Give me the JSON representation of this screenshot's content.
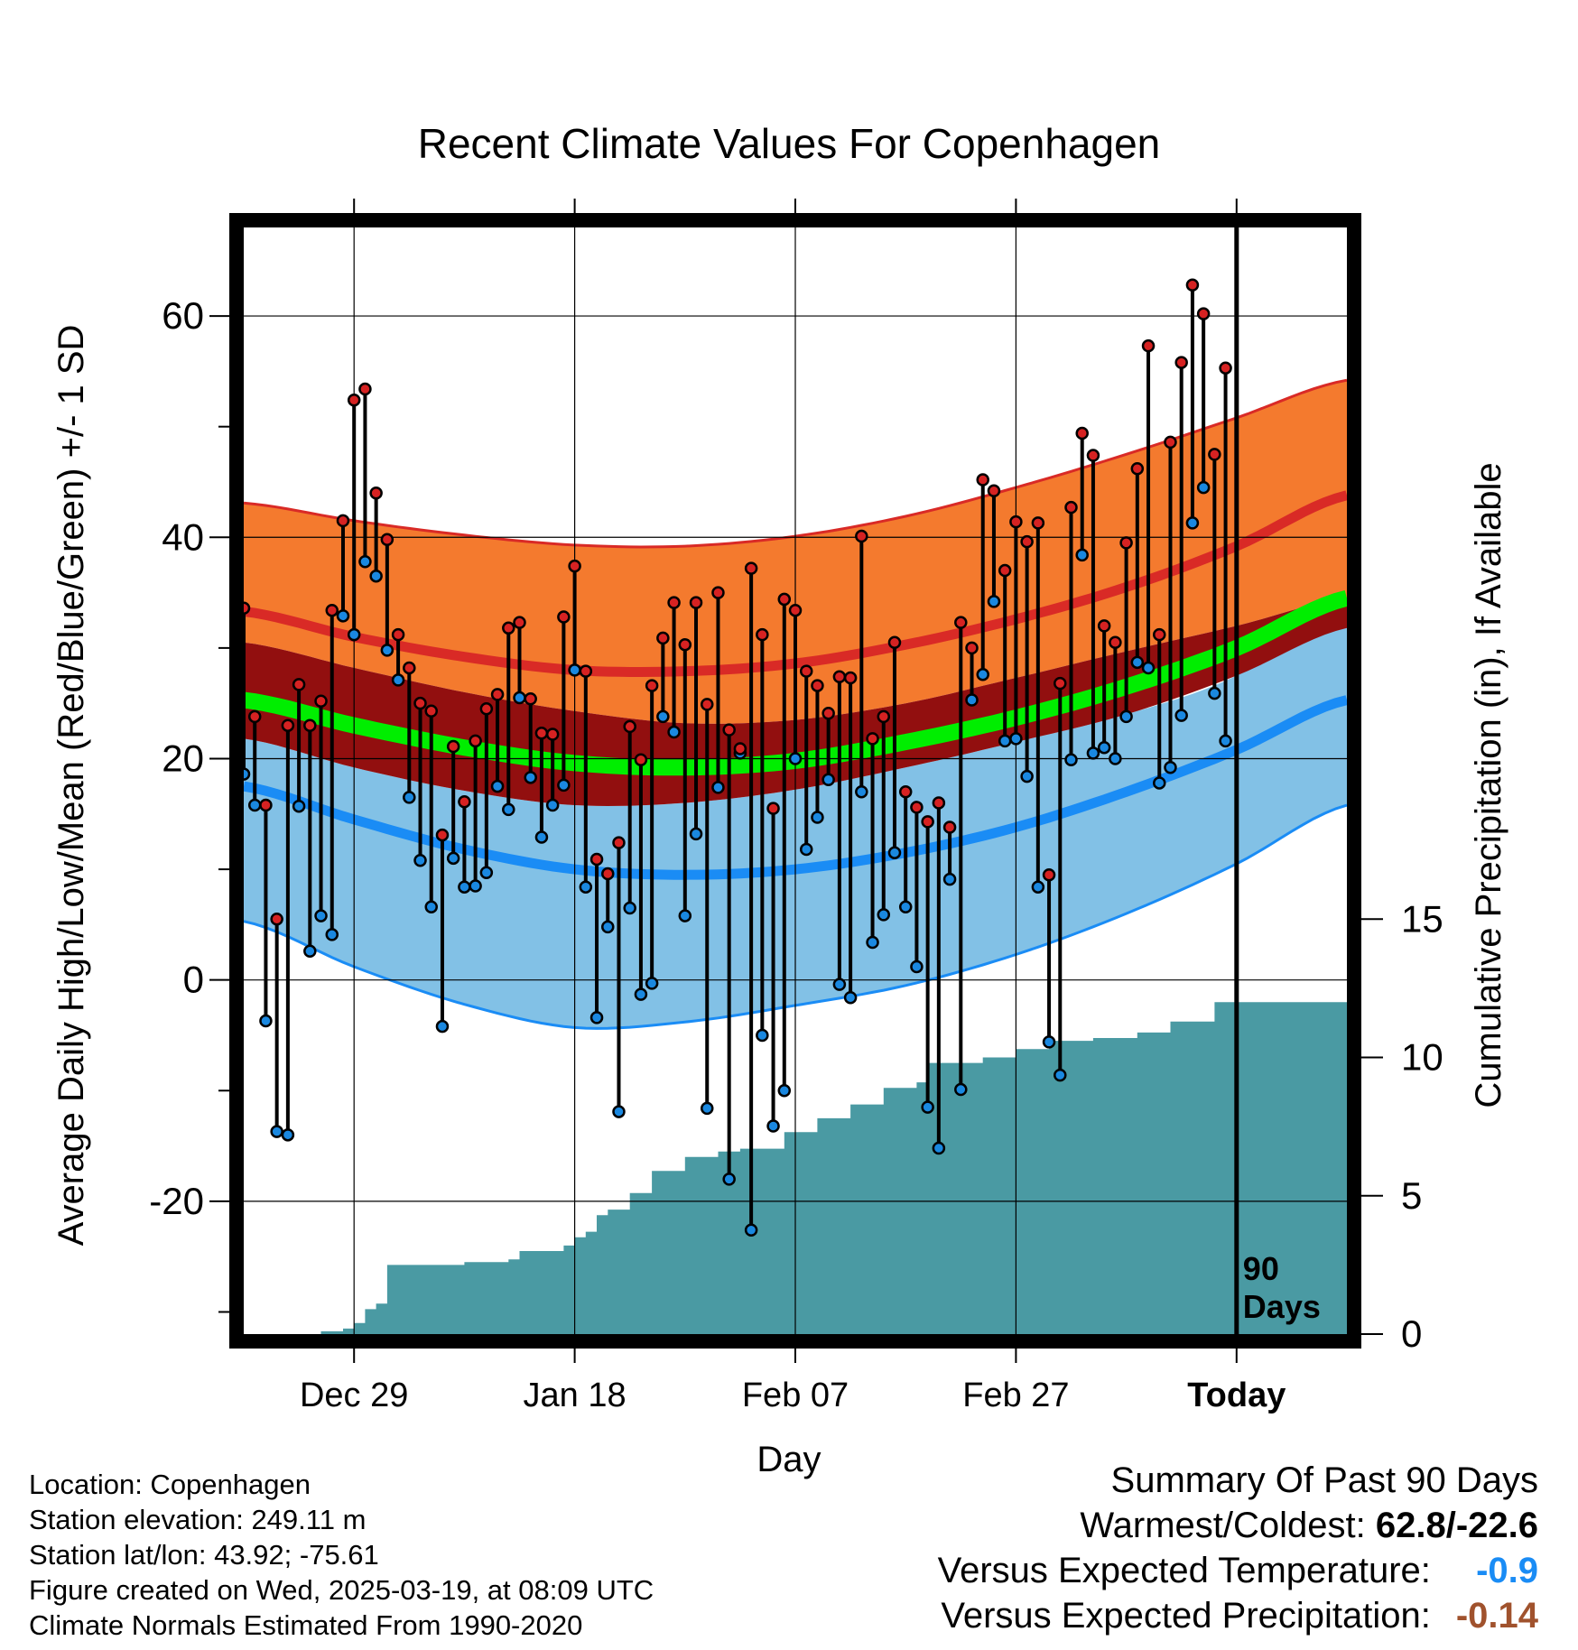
{
  "chart_data": {
    "type": "line",
    "title": "Recent Climate Values For Copenhagen",
    "xlabel": "Day",
    "ylabel": "Average Daily High/Low/Mean (Red/Blue/Green) +/- 1 SD",
    "y2label": "Cumulative Precipitation (in), If Available",
    "ylim": [
      -32,
      68
    ],
    "y2lim": [
      0,
      40
    ],
    "xlim": [
      -10,
      90
    ],
    "grid": true,
    "x_tick_labels": [
      "Dec 29",
      "Jan 18",
      "Feb 07",
      "Feb 27",
      "Today"
    ],
    "x_ticks": [
      0,
      20,
      40,
      60,
      80
    ],
    "y_ticks": [
      -20,
      0,
      20,
      40,
      60
    ],
    "y2_ticks": [
      0,
      5,
      10,
      15
    ],
    "today_marker_label": "90\nDays",
    "normal_curves": {
      "x": [
        -10,
        0,
        10,
        20,
        30,
        40,
        50,
        60,
        70,
        80,
        90
      ],
      "high_upper_sd": [
        43.1,
        41.5,
        40.2,
        39.3,
        39.2,
        40.1,
        41.9,
        44.5,
        47.5,
        50.8,
        54.2
      ],
      "high_mean": [
        33.3,
        31.0,
        29.2,
        28.0,
        27.9,
        28.6,
        30.3,
        32.6,
        35.5,
        39.2,
        43.8
      ],
      "high_lower_sd": [
        30.5,
        28.2,
        26.0,
        24.3,
        23.2,
        23.5,
        25.0,
        27.3,
        29.7,
        32.0,
        34.5
      ],
      "mean_line": [
        25.3,
        23.0,
        21.0,
        19.6,
        19.2,
        19.8,
        21.5,
        23.7,
        26.5,
        30.0,
        34.5
      ],
      "mean_lower_sd": [
        21.8,
        19.2,
        17.1,
        15.8,
        16.0,
        17.2,
        19.2,
        21.5,
        24.0,
        27.5,
        31.8
      ],
      "low_upper_sd": [
        21.8,
        19.2,
        17.1,
        15.8,
        16.0,
        17.2,
        19.2,
        21.5,
        24.0,
        27.5,
        33.8
      ],
      "low_mean": [
        17.5,
        14.5,
        11.8,
        10.0,
        9.5,
        10.0,
        11.5,
        13.8,
        17.0,
        20.8,
        25.3
      ],
      "low_lower_sd": [
        5.3,
        1.2,
        -2.2,
        -4.3,
        -3.8,
        -2.3,
        -0.5,
        2.3,
        6.0,
        10.5,
        15.8
      ]
    },
    "series": [
      {
        "name": "High",
        "x": [
          -10,
          -9,
          -8,
          -7,
          -6,
          -5,
          -4,
          -3,
          -2,
          -1,
          0,
          1,
          2,
          3,
          4,
          5,
          6,
          7,
          8,
          9,
          10,
          11,
          12,
          13,
          14,
          15,
          16,
          17,
          18,
          19,
          20,
          21,
          22,
          23,
          24,
          25,
          26,
          27,
          28,
          29,
          30,
          31,
          32,
          33,
          34,
          35,
          36,
          37,
          38,
          39,
          40,
          41,
          42,
          43,
          44,
          45,
          46,
          47,
          48,
          49,
          50,
          51,
          52,
          53,
          54,
          55,
          56,
          57,
          58,
          59,
          60,
          61,
          62,
          63,
          64,
          65,
          66,
          67,
          68,
          69,
          70,
          71,
          72,
          73,
          74,
          75,
          76,
          77,
          78,
          79
        ],
        "values": [
          33.6,
          23.8,
          15.8,
          5.5,
          23.0,
          26.7,
          23.0,
          25.2,
          33.4,
          41.5,
          52.4,
          53.4,
          44.0,
          39.8,
          31.2,
          28.2,
          25.0,
          24.3,
          13.1,
          21.1,
          16.1,
          21.6,
          24.5,
          25.8,
          31.8,
          32.3,
          25.4,
          22.3,
          22.2,
          32.8,
          37.4,
          27.9,
          10.9,
          9.6,
          12.4,
          22.9,
          19.9,
          26.6,
          30.9,
          34.1,
          30.3,
          34.1,
          24.9,
          35.0,
          22.6,
          20.9,
          37.2,
          31.2,
          15.5,
          34.4,
          33.4,
          27.9,
          26.6,
          24.1,
          27.4,
          27.3,
          40.1,
          21.8,
          23.8,
          30.5,
          17.0,
          15.6,
          14.3,
          16.0,
          13.8,
          32.3,
          30.0,
          45.2,
          44.2,
          37.0,
          41.4,
          39.6,
          41.3,
          9.5,
          26.8,
          42.7,
          49.4,
          47.4,
          32.0,
          30.5,
          39.5,
          46.2,
          57.3,
          31.2,
          48.6,
          55.8,
          62.8,
          60.2,
          47.5,
          55.3
        ]
      },
      {
        "name": "Low",
        "x": [
          -10,
          -9,
          -8,
          -7,
          -6,
          -5,
          -4,
          -3,
          -2,
          -1,
          0,
          1,
          2,
          3,
          4,
          5,
          6,
          7,
          8,
          9,
          10,
          11,
          12,
          13,
          14,
          15,
          16,
          17,
          18,
          19,
          20,
          21,
          22,
          23,
          24,
          25,
          26,
          27,
          28,
          29,
          30,
          31,
          32,
          33,
          34,
          35,
          36,
          37,
          38,
          39,
          40,
          41,
          42,
          43,
          44,
          45,
          46,
          47,
          48,
          49,
          50,
          51,
          52,
          53,
          54,
          55,
          56,
          57,
          58,
          59,
          60,
          61,
          62,
          63,
          64,
          65,
          66,
          67,
          68,
          69,
          70,
          71,
          72,
          73,
          74,
          75,
          76,
          77,
          78,
          79
        ],
        "values": [
          18.6,
          15.8,
          -3.7,
          -13.7,
          -14.0,
          15.7,
          2.6,
          5.8,
          4.1,
          32.9,
          31.2,
          37.8,
          36.5,
          29.8,
          27.1,
          16.5,
          10.8,
          6.6,
          -4.2,
          11.0,
          8.4,
          8.5,
          9.7,
          17.5,
          15.4,
          25.5,
          18.3,
          12.9,
          15.8,
          17.6,
          28.0,
          8.4,
          -3.4,
          4.8,
          -11.9,
          6.5,
          -1.3,
          -0.3,
          23.8,
          22.4,
          5.8,
          13.2,
          -11.6,
          17.4,
          -18.0,
          20.5,
          -22.6,
          -5.0,
          -13.2,
          -10.0,
          20.0,
          11.8,
          14.7,
          18.1,
          -0.4,
          -1.6,
          17.0,
          3.4,
          5.9,
          11.5,
          6.6,
          1.2,
          -11.5,
          -15.2,
          9.1,
          -9.9,
          25.3,
          27.6,
          34.2,
          21.6,
          21.8,
          18.4,
          8.4,
          -5.6,
          -8.6,
          19.9,
          38.4,
          20.5,
          21.0,
          20.0,
          23.8,
          28.7,
          28.2,
          17.8,
          19.2,
          23.9,
          41.3,
          44.5,
          25.9,
          21.6
        ]
      },
      {
        "name": "Cumulative Precipitation",
        "x": [
          -10,
          -5,
          -3,
          -1,
          0,
          1,
          2,
          3,
          10,
          14,
          15,
          19,
          20,
          21,
          22,
          23,
          25,
          27,
          30,
          33,
          35,
          39,
          42,
          45,
          48,
          51,
          52,
          57,
          60,
          63,
          67,
          71,
          74,
          78,
          90
        ],
        "values": [
          0.0,
          0.0,
          0.1,
          0.2,
          0.4,
          0.9,
          1.1,
          2.5,
          2.6,
          2.7,
          3.0,
          3.2,
          3.5,
          3.7,
          4.3,
          4.5,
          5.1,
          5.9,
          6.4,
          6.6,
          6.7,
          7.3,
          7.8,
          8.3,
          8.9,
          9.1,
          9.8,
          10.0,
          10.3,
          10.6,
          10.7,
          10.9,
          11.3,
          12.0,
          12.0
        ]
      }
    ],
    "colors": {
      "high_band": "#f47a2e",
      "high_line": "#d92a26",
      "mean_band": "#920f0f",
      "mean_line": "#00ee00",
      "low_band": "#82c1e6",
      "low_line": "#1a8cf5",
      "high_dot": "#d62222",
      "low_dot": "#1a88e0",
      "precip": "#4a9aa3"
    }
  },
  "footer": {
    "location": "Location: Copenhagen",
    "elevation": "Station elevation: 249.11 m",
    "latlon": "Station lat/lon: 43.92; -75.61",
    "created": "Figure created on Wed, 2025-03-19, at 08:09 UTC",
    "normals": "Climate Normals Estimated From 1990-2020"
  },
  "summary": {
    "title": "Summary Of Past 90 Days",
    "warmest_coldest_label": "Warmest/Coldest:",
    "warmest_coldest_value": "62.8/-22.6",
    "temp_label": "Versus Expected Temperature:",
    "temp_value": "-0.9",
    "temp_color": "#1a8cf5",
    "precip_label": "Versus Expected Precipitation:",
    "precip_value": "-0.14",
    "precip_color": "#a0522d"
  }
}
